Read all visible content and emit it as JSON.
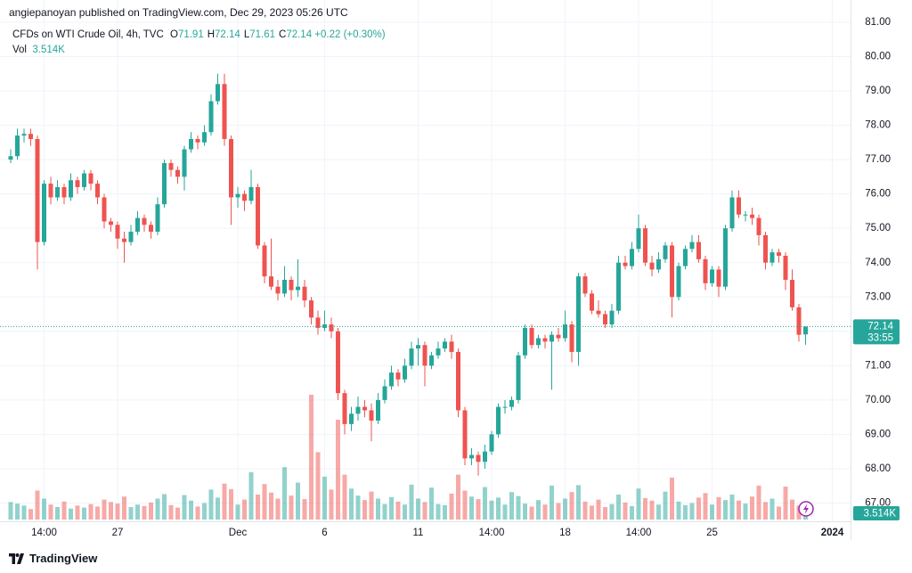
{
  "header": "angiepanoyan published on TradingView.com, Dec 29, 2023 05:26 UTC",
  "footer": "TradingView",
  "chart_data": {
    "type": "candlestick",
    "title": "CFDs on WTI Crude Oil, 4h, TVC",
    "ohlc_legend": [
      {
        "label": "O",
        "value": 71.91
      },
      {
        "label": "H",
        "value": 72.14
      },
      {
        "label": "L",
        "value": 71.61
      },
      {
        "label": "C",
        "value": 72.14
      }
    ],
    "change": "+0.22 (+0.30%)",
    "volume_legend_label": "Vol",
    "volume_label": "3.514K",
    "countdown": "33:55",
    "last_price": 72.14,
    "up_color": "#26a69a",
    "down_color": "#ef5350",
    "grid": true,
    "ylim": [
      66.52,
      81.18
    ],
    "yticks": [
      {
        "value": 67,
        "label": "67.00"
      },
      {
        "value": 68,
        "label": "68.00"
      },
      {
        "value": 69,
        "label": "69.00"
      },
      {
        "value": 70,
        "label": "70.00"
      },
      {
        "value": 71,
        "label": "71.00"
      },
      {
        "value": 72,
        "label": "72.00"
      },
      {
        "value": 73,
        "label": "73.00"
      },
      {
        "value": 74,
        "label": "74.00"
      },
      {
        "value": 75,
        "label": "75.00"
      },
      {
        "value": 76,
        "label": "76.00"
      },
      {
        "value": 77,
        "label": "77.00"
      },
      {
        "value": 78,
        "label": "78.00"
      },
      {
        "value": 79,
        "label": "79.00"
      },
      {
        "value": 80,
        "label": "80.00"
      },
      {
        "value": 81,
        "label": "81.00"
      }
    ],
    "categories": [
      null,
      null,
      null,
      null,
      null,
      "14:00",
      null,
      null,
      null,
      null,
      null,
      null,
      null,
      null,
      null,
      null,
      "27",
      null,
      null,
      null,
      null,
      null,
      null,
      null,
      null,
      null,
      null,
      null,
      null,
      null,
      null,
      null,
      null,
      null,
      "Dec",
      null,
      null,
      null,
      null,
      null,
      null,
      null,
      null,
      null,
      null,
      null,
      null,
      "6",
      null,
      null,
      null,
      null,
      null,
      null,
      null,
      null,
      null,
      null,
      null,
      null,
      null,
      "11",
      null,
      null,
      null,
      null,
      null,
      null,
      null,
      null,
      null,
      null,
      "14:00",
      null,
      null,
      null,
      null,
      null,
      null,
      null,
      null,
      null,
      null,
      "18",
      null,
      null,
      null,
      null,
      null,
      null,
      null,
      null,
      null,
      null,
      "14:00",
      null,
      null,
      null,
      null,
      null,
      null,
      null,
      null,
      null,
      null,
      "25",
      null,
      null,
      null,
      null,
      null,
      null,
      null,
      null,
      null,
      null,
      null,
      null,
      null,
      null,
      null,
      null,
      null,
      "2024"
    ],
    "open": [
      77.0,
      77.1,
      77.7,
      77.75,
      77.6,
      74.6,
      76.3,
      75.9,
      76.2,
      75.9,
      76.4,
      76.2,
      76.6,
      76.3,
      75.9,
      75.2,
      75.1,
      74.7,
      74.6,
      74.9,
      75.3,
      75.1,
      74.9,
      75.7,
      76.9,
      76.7,
      76.5,
      77.3,
      77.6,
      77.5,
      77.8,
      78.7,
      79.2,
      77.6,
      75.9,
      76.0,
      75.8,
      76.2,
      74.5,
      73.6,
      73.3,
      73.1,
      73.5,
      73.2,
      73.3,
      72.9,
      72.4,
      72.1,
      72.2,
      72.0,
      70.2,
      69.3,
      69.6,
      69.8,
      69.7,
      69.4,
      70.0,
      70.4,
      70.8,
      70.6,
      71.0,
      71.5,
      71.6,
      71.0,
      71.3,
      71.5,
      71.7,
      71.4,
      69.7,
      68.3,
      68.4,
      68.2,
      68.5,
      69.0,
      69.8,
      69.8,
      70.0,
      71.3,
      72.1,
      71.6,
      71.8,
      71.7,
      71.9,
      71.8,
      72.2,
      71.4,
      73.6,
      73.1,
      72.6,
      72.5,
      72.2,
      72.6,
      74.0,
      73.9,
      74.4,
      75.0,
      74.0,
      73.8,
      74.1,
      74.5,
      73.0,
      73.9,
      74.4,
      74.6,
      74.1,
      73.4,
      73.8,
      73.3,
      75.0,
      75.9,
      75.4,
      75.4,
      75.3,
      74.8,
      74.0,
      74.3,
      74.2,
      73.5,
      72.7,
      71.91,
      null,
      null,
      null,
      null
    ],
    "high": [
      77.3,
      77.9,
      77.9,
      77.9,
      77.7,
      76.4,
      76.5,
      76.4,
      76.3,
      76.6,
      76.5,
      76.7,
      76.7,
      76.4,
      76.0,
      75.3,
      75.2,
      74.9,
      75.1,
      75.5,
      75.4,
      75.2,
      75.9,
      77.0,
      77.0,
      76.8,
      77.4,
      77.8,
      77.7,
      78.0,
      78.9,
      79.5,
      79.5,
      77.7,
      76.2,
      76.1,
      76.7,
      76.3,
      74.6,
      74.7,
      73.5,
      73.9,
      73.6,
      74.1,
      73.5,
      73.0,
      72.6,
      72.6,
      72.4,
      72.1,
      70.3,
      69.8,
      70.1,
      70.0,
      69.9,
      70.2,
      70.6,
      71.0,
      70.9,
      71.2,
      71.7,
      71.8,
      71.7,
      71.4,
      71.7,
      71.8,
      71.9,
      71.5,
      69.8,
      68.6,
      68.5,
      68.7,
      69.1,
      69.9,
      70.0,
      70.1,
      71.4,
      72.2,
      72.2,
      71.9,
      71.9,
      72.0,
      72.1,
      72.6,
      72.3,
      73.7,
      73.7,
      73.2,
      72.9,
      72.6,
      72.8,
      74.2,
      74.2,
      74.6,
      75.4,
      75.1,
      74.2,
      74.3,
      74.6,
      74.6,
      74.0,
      74.5,
      74.8,
      74.8,
      74.2,
      73.9,
      73.9,
      75.1,
      76.1,
      76.1,
      75.5,
      75.6,
      75.4,
      74.9,
      74.4,
      74.4,
      74.3,
      73.8,
      72.8,
      72.14,
      null,
      null,
      null,
      null
    ],
    "low": [
      76.9,
      77.0,
      77.5,
      77.4,
      73.8,
      74.5,
      75.7,
      75.8,
      75.7,
      75.8,
      76.0,
      76.1,
      76.1,
      75.7,
      75.0,
      74.9,
      74.4,
      74.0,
      74.5,
      74.8,
      74.9,
      74.7,
      74.8,
      75.6,
      76.5,
      76.3,
      76.1,
      77.2,
      77.3,
      77.4,
      77.7,
      78.6,
      77.4,
      75.1,
      75.6,
      75.5,
      75.7,
      74.4,
      73.4,
      73.2,
      72.9,
      73.0,
      72.9,
      73.0,
      72.7,
      72.2,
      71.9,
      72.0,
      71.8,
      70.0,
      69.0,
      69.1,
      69.4,
      69.5,
      68.8,
      69.3,
      69.9,
      70.3,
      70.4,
      70.5,
      70.9,
      71.0,
      70.4,
      70.9,
      71.2,
      71.4,
      71.2,
      69.5,
      68.1,
      68.1,
      67.8,
      68.0,
      68.4,
      68.9,
      69.6,
      69.7,
      69.9,
      71.2,
      71.5,
      71.5,
      71.5,
      70.3,
      71.7,
      71.7,
      71.1,
      71.0,
      73.0,
      72.5,
      72.4,
      72.1,
      72.1,
      72.5,
      73.8,
      73.8,
      74.3,
      73.9,
      73.6,
      73.7,
      74.0,
      72.4,
      72.9,
      73.8,
      74.3,
      74.0,
      73.2,
      73.3,
      73.0,
      73.2,
      74.9,
      75.3,
      75.2,
      75.1,
      74.5,
      73.8,
      73.9,
      74.0,
      73.2,
      72.6,
      71.7,
      71.61,
      null,
      null,
      null,
      null
    ],
    "close": [
      77.1,
      77.7,
      77.75,
      77.6,
      74.6,
      76.3,
      75.9,
      76.2,
      75.9,
      76.4,
      76.2,
      76.6,
      76.3,
      75.9,
      75.2,
      75.1,
      74.7,
      74.6,
      74.9,
      75.3,
      75.1,
      74.9,
      75.7,
      76.9,
      76.7,
      76.5,
      77.3,
      77.6,
      77.5,
      77.8,
      78.7,
      79.2,
      77.6,
      75.9,
      76.0,
      75.8,
      76.2,
      74.5,
      73.6,
      73.3,
      73.1,
      73.5,
      73.2,
      73.3,
      72.9,
      72.4,
      72.1,
      72.2,
      72.0,
      70.2,
      69.3,
      69.6,
      69.8,
      69.7,
      69.4,
      70.0,
      70.4,
      70.8,
      70.6,
      71.0,
      71.5,
      71.6,
      71.0,
      71.3,
      71.5,
      71.7,
      71.4,
      69.7,
      68.3,
      68.4,
      68.2,
      68.5,
      69.0,
      69.8,
      69.8,
      70.0,
      71.3,
      72.1,
      71.6,
      71.8,
      71.7,
      71.9,
      71.8,
      72.2,
      71.4,
      73.6,
      73.1,
      72.6,
      72.5,
      72.2,
      72.6,
      74.0,
      73.9,
      74.4,
      75.0,
      74.0,
      73.8,
      74.1,
      74.5,
      73.0,
      73.9,
      74.4,
      74.6,
      74.1,
      73.4,
      73.8,
      73.3,
      75.0,
      75.9,
      75.4,
      75.4,
      75.3,
      74.8,
      74.0,
      74.3,
      74.2,
      73.5,
      72.7,
      71.9,
      72.14,
      null,
      null,
      null,
      null
    ],
    "volume": [
      3.5,
      3.2,
      2.8,
      2.1,
      5.8,
      4.2,
      3.0,
      2.5,
      3.6,
      2.2,
      2.8,
      2.4,
      3.1,
      2.6,
      4.0,
      3.5,
      3.2,
      4.6,
      2.5,
      3.0,
      2.7,
      3.4,
      4.2,
      5.1,
      2.9,
      2.4,
      4.9,
      3.8,
      2.6,
      3.3,
      6.0,
      4.4,
      7.2,
      6.1,
      3.0,
      4.0,
      9.5,
      5.0,
      7.1,
      5.4,
      4.2,
      10.5,
      4.8,
      7.4,
      4.1,
      25.0,
      13.5,
      8.6,
      6.0,
      20.0,
      9.0,
      6.2,
      4.8,
      3.9,
      5.6,
      4.2,
      3.1,
      4.5,
      3.6,
      3.0,
      7.0,
      4.2,
      3.5,
      6.4,
      3.1,
      2.9,
      5.2,
      9.0,
      5.8,
      4.6,
      4.1,
      6.5,
      3.8,
      4.4,
      3.0,
      5.5,
      4.7,
      3.2,
      2.6,
      3.9,
      3.0,
      6.8,
      3.3,
      4.2,
      5.5,
      6.9,
      3.6,
      2.8,
      4.0,
      2.5,
      3.1,
      5.0,
      3.4,
      2.7,
      6.2,
      4.3,
      3.8,
      3.0,
      5.6,
      8.4,
      3.6,
      2.9,
      3.3,
      4.4,
      5.3,
      3.0,
      4.5,
      3.9,
      5.0,
      3.8,
      3.2,
      4.6,
      6.8,
      3.5,
      4.2,
      2.6,
      6.6,
      4.0,
      2.8,
      3.514,
      null,
      null,
      null,
      null
    ]
  }
}
